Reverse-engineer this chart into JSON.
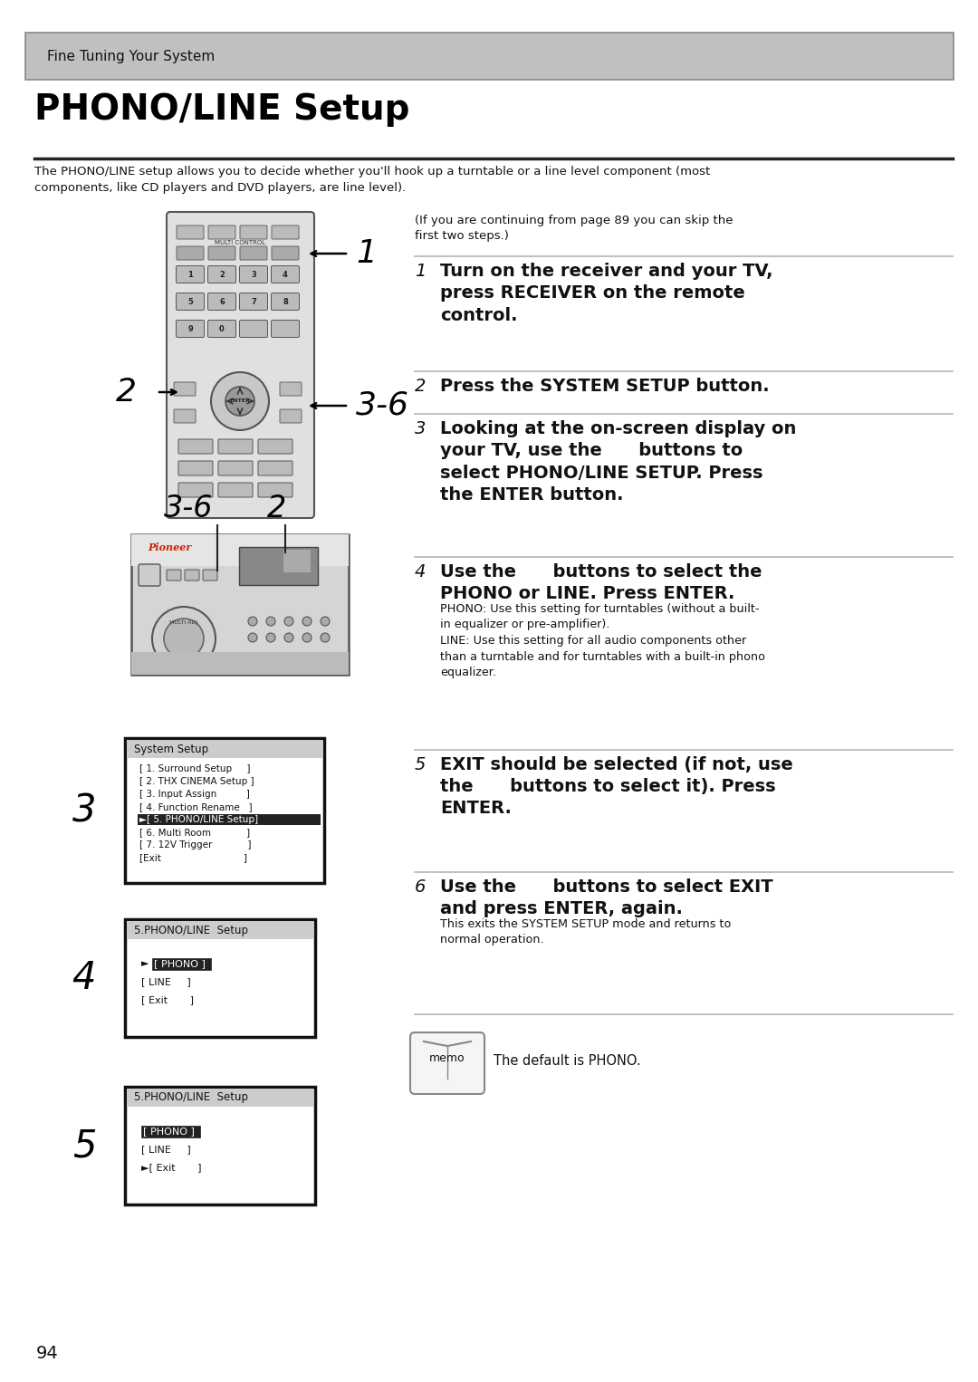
{
  "page_bg": "#ffffff",
  "header_bg": "#c0c0c0",
  "header_text": "Fine Tuning Your System",
  "title": "PHONO/LINE Setup",
  "intro_text": "The PHONO/LINE setup allows you to decide whether you'll hook up a turntable or a line level component (most\ncomponents, like CD players and DVD players, are line level).",
  "skip_note": "(If you are continuing from page 89 you can skip the\nfirst two steps.)",
  "memo_text": "The default is PHONO.",
  "page_num": "94",
  "divider_color": "#bbbbbb",
  "step1_bold": "Turn on the receiver and your TV,\npress RECEIVER on the remote\ncontrol.",
  "step2_bold": "Press the SYSTEM SETUP button.",
  "step3_bold": "Looking at the on-screen display on\nyour TV, use the      buttons to\nselect PHONO/LINE SETUP. Press\nthe ENTER button.",
  "step4_bold": "Use the      buttons to select the\nPHONO or LINE. Press ENTER.",
  "step4_normal": "PHONO: Use this setting for turntables (without a built-\nin equalizer or pre-amplifier).\nLINE: Use this setting for all audio components other\nthan a turntable and for turntables with a built-in phono\nequalizer.",
  "step5_bold": "EXIT should be selected (if not, use\nthe      buttons to select it). Press\nENTER.",
  "step6_bold": "Use the      buttons to select EXIT\nand press ENTER, again.",
  "step6_normal": "This exits the SYSTEM SETUP mode and returns to\nnormal operation.",
  "sys_menu": [
    "[ 1. Surround Setup       ]",
    "[ 2. THX CINEMA Setup  ]",
    "[ 3. Input Assign             ]",
    "[ 4. Function Rename      ]",
    "[ 5. PHONO/LINE Setup  ]",
    "[ 6. Multi Room               ]",
    "[ 7. 12V Trigger               ]",
    "[Exit                                ]"
  ],
  "sys_menu_highlight": 4
}
